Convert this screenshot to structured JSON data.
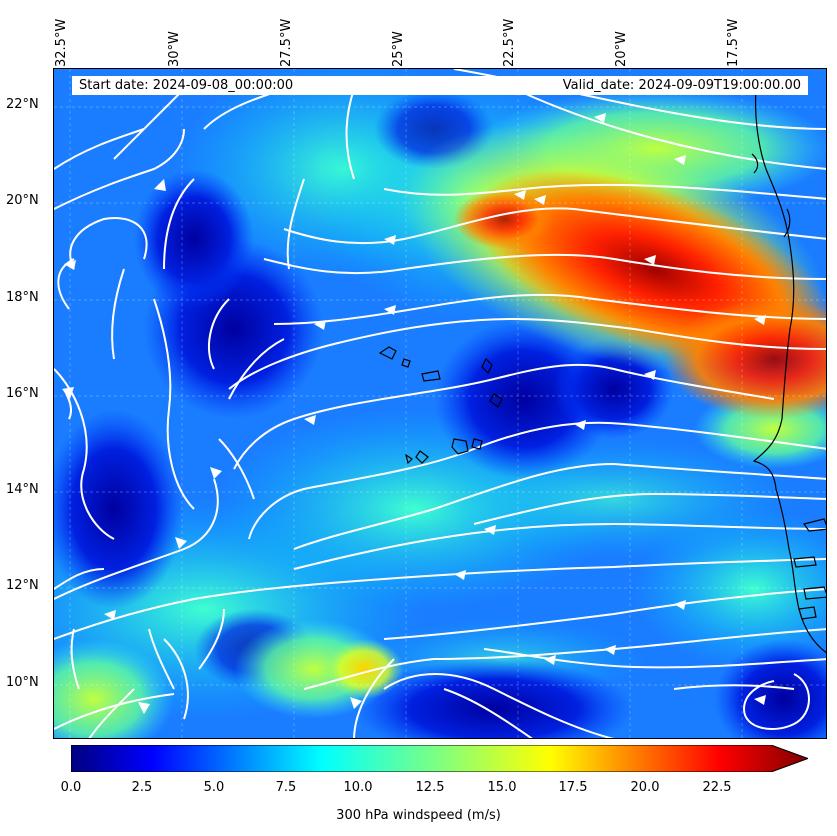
{
  "header": {
    "start_date": "Start date: 2024-09-08_00:00:00",
    "valid_date": "Valid_date: 2024-09-09T19:00:00.00"
  },
  "axes": {
    "longitude_labels": [
      "32.5°W",
      "30°W",
      "27.5°W",
      "25°W",
      "22.5°W",
      "20°W",
      "17.5°W"
    ],
    "latitude_labels": [
      "22°N",
      "20°N",
      "18°N",
      "16°N",
      "14°N",
      "12°N",
      "10°N"
    ]
  },
  "colorbar": {
    "label": "300 hPa windspeed (m/s)",
    "ticks": [
      "0.0",
      "2.5",
      "5.0",
      "7.5",
      "10.0",
      "12.5",
      "15.0",
      "17.5",
      "20.0",
      "22.5"
    ],
    "range": [
      0,
      25
    ],
    "extend": "max",
    "colormap": [
      "#00007f",
      "#0000ff",
      "#007fff",
      "#00ffff",
      "#7fff7f",
      "#ffff00",
      "#ff7f00",
      "#ff0000",
      "#7f0000"
    ]
  },
  "map": {
    "projection": "PlateCarree",
    "field": "300 hPa windspeed",
    "streamline_color": "#ffffff",
    "coastline_color": "#000000"
  }
}
